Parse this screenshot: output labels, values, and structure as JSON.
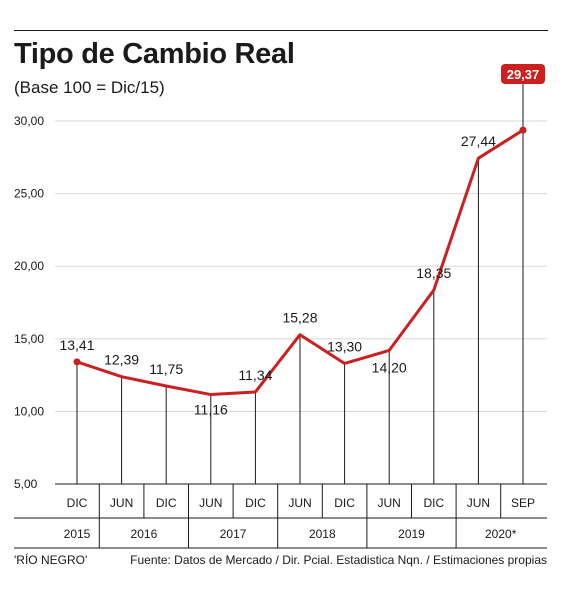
{
  "title": "Tipo de Cambio Real",
  "subtitle": "(Base 100 = Dic/15)",
  "footer": {
    "left": "'RÍO NEGRO'",
    "right": "Fuente: Datos de Mercado / Dir. Pcial. Estadistica Nqn. / Estimaciones propias"
  },
  "chart_data": {
    "type": "line",
    "categories": [
      "DIC",
      "JUN",
      "DIC",
      "JUN",
      "DIC",
      "JUN",
      "DIC",
      "JUN",
      "DIC",
      "JUN",
      "SEP"
    ],
    "values": [
      13.41,
      12.39,
      11.75,
      11.16,
      11.34,
      15.28,
      13.3,
      14.2,
      18.35,
      27.44,
      29.37
    ],
    "value_labels": [
      "13,41",
      "12,39",
      "11,75",
      "11,16",
      "11,34",
      "15,28",
      "13,30",
      "14,20",
      "18,35",
      "27,44",
      "29,37"
    ],
    "highlight_index": 10,
    "year_groups": [
      {
        "label": "2015",
        "span": 1
      },
      {
        "label": "2016",
        "span": 2
      },
      {
        "label": "2017",
        "span": 2
      },
      {
        "label": "2018",
        "span": 2
      },
      {
        "label": "2019",
        "span": 2
      },
      {
        "label": "2020*",
        "span": 2
      }
    ],
    "ylim": [
      5,
      30
    ],
    "yticks": [
      5,
      10,
      15,
      20,
      25,
      30
    ],
    "ytick_labels": [
      "5,00",
      "10,00",
      "15,00",
      "20,00",
      "25,00",
      "30,00"
    ],
    "grid": true,
    "colors": {
      "line": "#cc1f1f",
      "highlight_bg": "#cc1f1f",
      "grid": "#d9d9d9",
      "axis": "#1a1a1a"
    }
  }
}
